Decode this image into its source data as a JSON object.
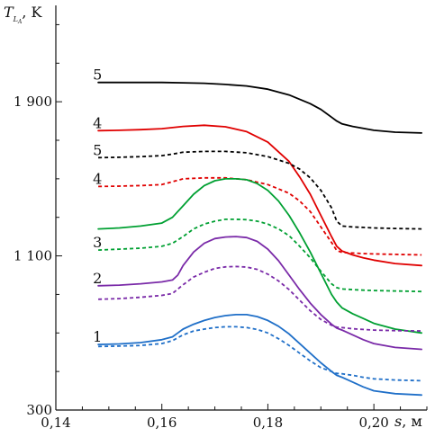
{
  "chart_data": {
    "type": "line",
    "ylabel": "T, K",
    "ylabel_subscript": "L",
    "ylabel_subsubscript": "A",
    "xlabel": "s, м",
    "xlim": [
      0.14,
      0.21
    ],
    "ylim": [
      300,
      2400
    ],
    "x_ticks": [
      {
        "value": 0.14,
        "label": "0,14"
      },
      {
        "value": 0.16,
        "label": "0,16"
      },
      {
        "value": 0.18,
        "label": "0,18"
      },
      {
        "value": 0.2,
        "label": "0,20"
      }
    ],
    "y_ticks": [
      {
        "value": 300,
        "label": "300"
      },
      {
        "value": 1100,
        "label": "1 100"
      },
      {
        "value": 1900,
        "label": "1 900"
      }
    ],
    "series": [
      {
        "name": "5",
        "color": "#000000",
        "dashed": false,
        "x": [
          0.148,
          0.152,
          0.156,
          0.16,
          0.164,
          0.168,
          0.172,
          0.176,
          0.18,
          0.184,
          0.188,
          0.19,
          0.192,
          0.193,
          0.194,
          0.196,
          0.198,
          0.2,
          0.204,
          0.209
        ],
        "y": [
          2000,
          2000,
          2000,
          2000,
          1998,
          1996,
          1990,
          1982,
          1965,
          1935,
          1890,
          1860,
          1820,
          1800,
          1785,
          1772,
          1762,
          1752,
          1742,
          1738
        ]
      },
      {
        "name": "4",
        "color": "#e00000",
        "dashed": false,
        "x": [
          0.148,
          0.152,
          0.156,
          0.16,
          0.164,
          0.168,
          0.172,
          0.176,
          0.18,
          0.184,
          0.186,
          0.188,
          0.19,
          0.192,
          0.193,
          0.194,
          0.196,
          0.198,
          0.2,
          0.204,
          0.209
        ],
        "y": [
          1750,
          1752,
          1755,
          1760,
          1772,
          1778,
          1770,
          1745,
          1690,
          1590,
          1510,
          1420,
          1310,
          1200,
          1150,
          1125,
          1105,
          1090,
          1078,
          1060,
          1050
        ]
      },
      {
        "name": "5",
        "color": "#000000",
        "dashed": true,
        "x": [
          0.148,
          0.152,
          0.156,
          0.16,
          0.162,
          0.164,
          0.168,
          0.172,
          0.176,
          0.18,
          0.184,
          0.186,
          0.188,
          0.19,
          0.192,
          0.193,
          0.194,
          0.196,
          0.198,
          0.2,
          0.204,
          0.209
        ],
        "y": [
          1610,
          1612,
          1615,
          1620,
          1628,
          1638,
          1642,
          1642,
          1635,
          1615,
          1580,
          1550,
          1505,
          1440,
          1350,
          1280,
          1255,
          1250,
          1248,
          1245,
          1242,
          1240
        ]
      },
      {
        "name": "4",
        "color": "#e00000",
        "dashed": true,
        "x": [
          0.148,
          0.152,
          0.156,
          0.16,
          0.162,
          0.164,
          0.168,
          0.172,
          0.176,
          0.18,
          0.184,
          0.186,
          0.188,
          0.19,
          0.192,
          0.193,
          0.194,
          0.196,
          0.198,
          0.2,
          0.204,
          0.209
        ],
        "y": [
          1460,
          1462,
          1465,
          1470,
          1485,
          1500,
          1505,
          1505,
          1495,
          1470,
          1425,
          1385,
          1330,
          1250,
          1170,
          1128,
          1118,
          1115,
          1112,
          1110,
          1108,
          1105
        ]
      },
      {
        "name": "3",
        "color": "#00a032",
        "dashed": false,
        "x": [
          0.148,
          0.152,
          0.156,
          0.16,
          0.162,
          0.164,
          0.166,
          0.168,
          0.17,
          0.172,
          0.174,
          0.176,
          0.178,
          0.18,
          0.182,
          0.184,
          0.186,
          0.188,
          0.19,
          0.192,
          0.193,
          0.194,
          0.196,
          0.198,
          0.2,
          0.204,
          0.209
        ],
        "y": [
          1240,
          1245,
          1255,
          1270,
          1300,
          1360,
          1420,
          1465,
          1490,
          1500,
          1500,
          1495,
          1475,
          1440,
          1385,
          1310,
          1220,
          1120,
          1010,
          900,
          860,
          830,
          800,
          775,
          750,
          720,
          700
        ]
      },
      {
        "name": "3",
        "color": "#00a032",
        "dashed": true,
        "x": [
          0.148,
          0.152,
          0.156,
          0.16,
          0.162,
          0.164,
          0.166,
          0.168,
          0.17,
          0.172,
          0.174,
          0.176,
          0.178,
          0.18,
          0.182,
          0.184,
          0.186,
          0.188,
          0.19,
          0.192,
          0.193,
          0.194,
          0.196,
          0.198,
          0.2,
          0.204,
          0.209
        ],
        "y": [
          1130,
          1135,
          1140,
          1150,
          1165,
          1200,
          1240,
          1265,
          1280,
          1290,
          1290,
          1288,
          1280,
          1265,
          1240,
          1205,
          1150,
          1090,
          1020,
          955,
          935,
          928,
          925,
          922,
          920,
          918,
          915
        ]
      },
      {
        "name": "2",
        "color": "#7a2aa8",
        "dashed": false,
        "x": [
          0.148,
          0.152,
          0.156,
          0.16,
          0.162,
          0.163,
          0.164,
          0.166,
          0.168,
          0.17,
          0.172,
          0.174,
          0.176,
          0.178,
          0.18,
          0.182,
          0.184,
          0.186,
          0.188,
          0.19,
          0.192,
          0.193,
          0.194,
          0.196,
          0.198,
          0.2,
          0.204,
          0.209
        ],
        "y": [
          945,
          948,
          955,
          965,
          975,
          1000,
          1050,
          1120,
          1165,
          1190,
          1198,
          1200,
          1195,
          1175,
          1135,
          1075,
          1000,
          925,
          855,
          795,
          745,
          725,
          715,
          690,
          665,
          645,
          625,
          615
        ]
      },
      {
        "name": "2",
        "color": "#7a2aa8",
        "dashed": true,
        "x": [
          0.148,
          0.152,
          0.156,
          0.16,
          0.162,
          0.164,
          0.166,
          0.168,
          0.17,
          0.172,
          0.174,
          0.176,
          0.178,
          0.18,
          0.182,
          0.184,
          0.186,
          0.188,
          0.19,
          0.192,
          0.193,
          0.194,
          0.196,
          0.198,
          0.2,
          0.204,
          0.209
        ],
        "y": [
          875,
          878,
          885,
          895,
          905,
          950,
          990,
          1015,
          1035,
          1043,
          1045,
          1042,
          1030,
          1005,
          970,
          925,
          870,
          815,
          770,
          740,
          730,
          728,
          722,
          718,
          715,
          712,
          710
        ]
      },
      {
        "name": "1",
        "color": "#1f6fc8",
        "dashed": false,
        "x": [
          0.148,
          0.152,
          0.156,
          0.16,
          0.162,
          0.163,
          0.164,
          0.166,
          0.168,
          0.17,
          0.172,
          0.174,
          0.176,
          0.178,
          0.18,
          0.182,
          0.184,
          0.186,
          0.188,
          0.19,
          0.192,
          0.193,
          0.194,
          0.196,
          0.198,
          0.2,
          0.204,
          0.209
        ],
        "y": [
          640,
          643,
          650,
          665,
          680,
          700,
          720,
          745,
          765,
          780,
          790,
          795,
          795,
          785,
          765,
          735,
          695,
          645,
          595,
          545,
          500,
          480,
          470,
          445,
          420,
          400,
          385,
          378
        ]
      },
      {
        "name": "1",
        "color": "#1f6fc8",
        "dashed": true,
        "x": [
          0.148,
          0.152,
          0.156,
          0.16,
          0.162,
          0.164,
          0.166,
          0.168,
          0.17,
          0.172,
          0.174,
          0.176,
          0.178,
          0.18,
          0.182,
          0.184,
          0.186,
          0.188,
          0.19,
          0.192,
          0.193,
          0.194,
          0.196,
          0.198,
          0.2,
          0.204,
          0.209
        ],
        "y": [
          630,
          632,
          635,
          645,
          660,
          690,
          710,
          720,
          728,
          732,
          732,
          728,
          718,
          700,
          670,
          635,
          595,
          555,
          520,
          500,
          490,
          488,
          480,
          470,
          462,
          456,
          452
        ]
      }
    ],
    "series_labels": [
      {
        "text": "5",
        "series_index": 0
      },
      {
        "text": "4",
        "series_index": 1
      },
      {
        "text": "5",
        "series_index": 2
      },
      {
        "text": "4",
        "series_index": 3
      },
      {
        "text": "3",
        "series_index": 5
      },
      {
        "text": "2",
        "series_index": 6
      },
      {
        "text": "1",
        "series_index": 8
      }
    ]
  }
}
